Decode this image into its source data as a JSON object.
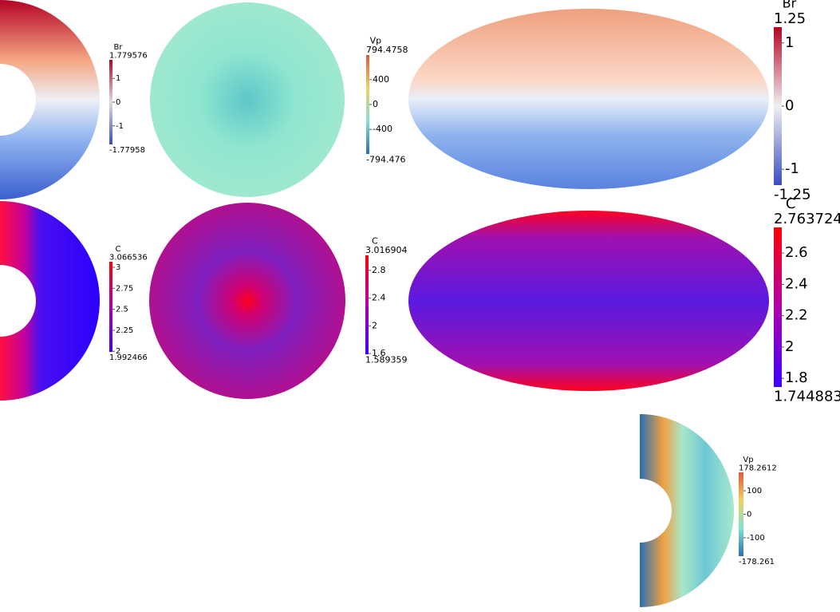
{
  "panels": [
    {
      "colorbar": {
        "title": "Br",
        "max": 1.779576,
        "min": -1.77958,
        "ticks": [
          1,
          0,
          -1
        ],
        "colors": [
          "#3b4cc0",
          "#dddddd",
          "#b40426"
        ]
      }
    },
    {
      "colorbar": {
        "title": "Vp",
        "max": 794.4758,
        "min": -794.476,
        "ticks": [
          400,
          0,
          -400
        ],
        "colors": [
          "#2b6fb0",
          "#7fe3d2",
          "#f0d060",
          "#e05a3a"
        ]
      }
    },
    {
      "colorbar": {
        "title": "Br",
        "max": 1.25,
        "min": -1.25,
        "ticks": [
          1,
          0,
          -1
        ],
        "colors": [
          "#3b4cc0",
          "#f0f0f0",
          "#b40426"
        ]
      }
    },
    {
      "colorbar": {
        "title": "C",
        "max": 3.066536,
        "min": 1.992466,
        "ticks": [
          3,
          2.75,
          2.5,
          2.25,
          2
        ],
        "colors": [
          "#3a00ff",
          "#b000aa",
          "#ff0000"
        ]
      }
    },
    {
      "colorbar": {
        "title": "C",
        "max": 3.016904,
        "min": 1.589359,
        "ticks": [
          2.8,
          2.4,
          2,
          1.6
        ],
        "colors": [
          "#3a00ff",
          "#b000aa",
          "#ff0000"
        ]
      }
    },
    {
      "colorbar": {
        "title": "C",
        "max": 2.763724,
        "min": 1.744883,
        "ticks": [
          2.6,
          2.4,
          2.2,
          2,
          1.8
        ],
        "colors": [
          "#3a00ff",
          "#b000aa",
          "#ff0000"
        ]
      }
    },
    {
      "colorbar": {
        "title": "Vp",
        "max": 178.2612,
        "min": -178.261,
        "ticks": [
          100,
          0,
          -100
        ],
        "colors": [
          "#2b6fb0",
          "#7fe3d2",
          "#f0d060",
          "#e05a3a"
        ]
      }
    }
  ]
}
